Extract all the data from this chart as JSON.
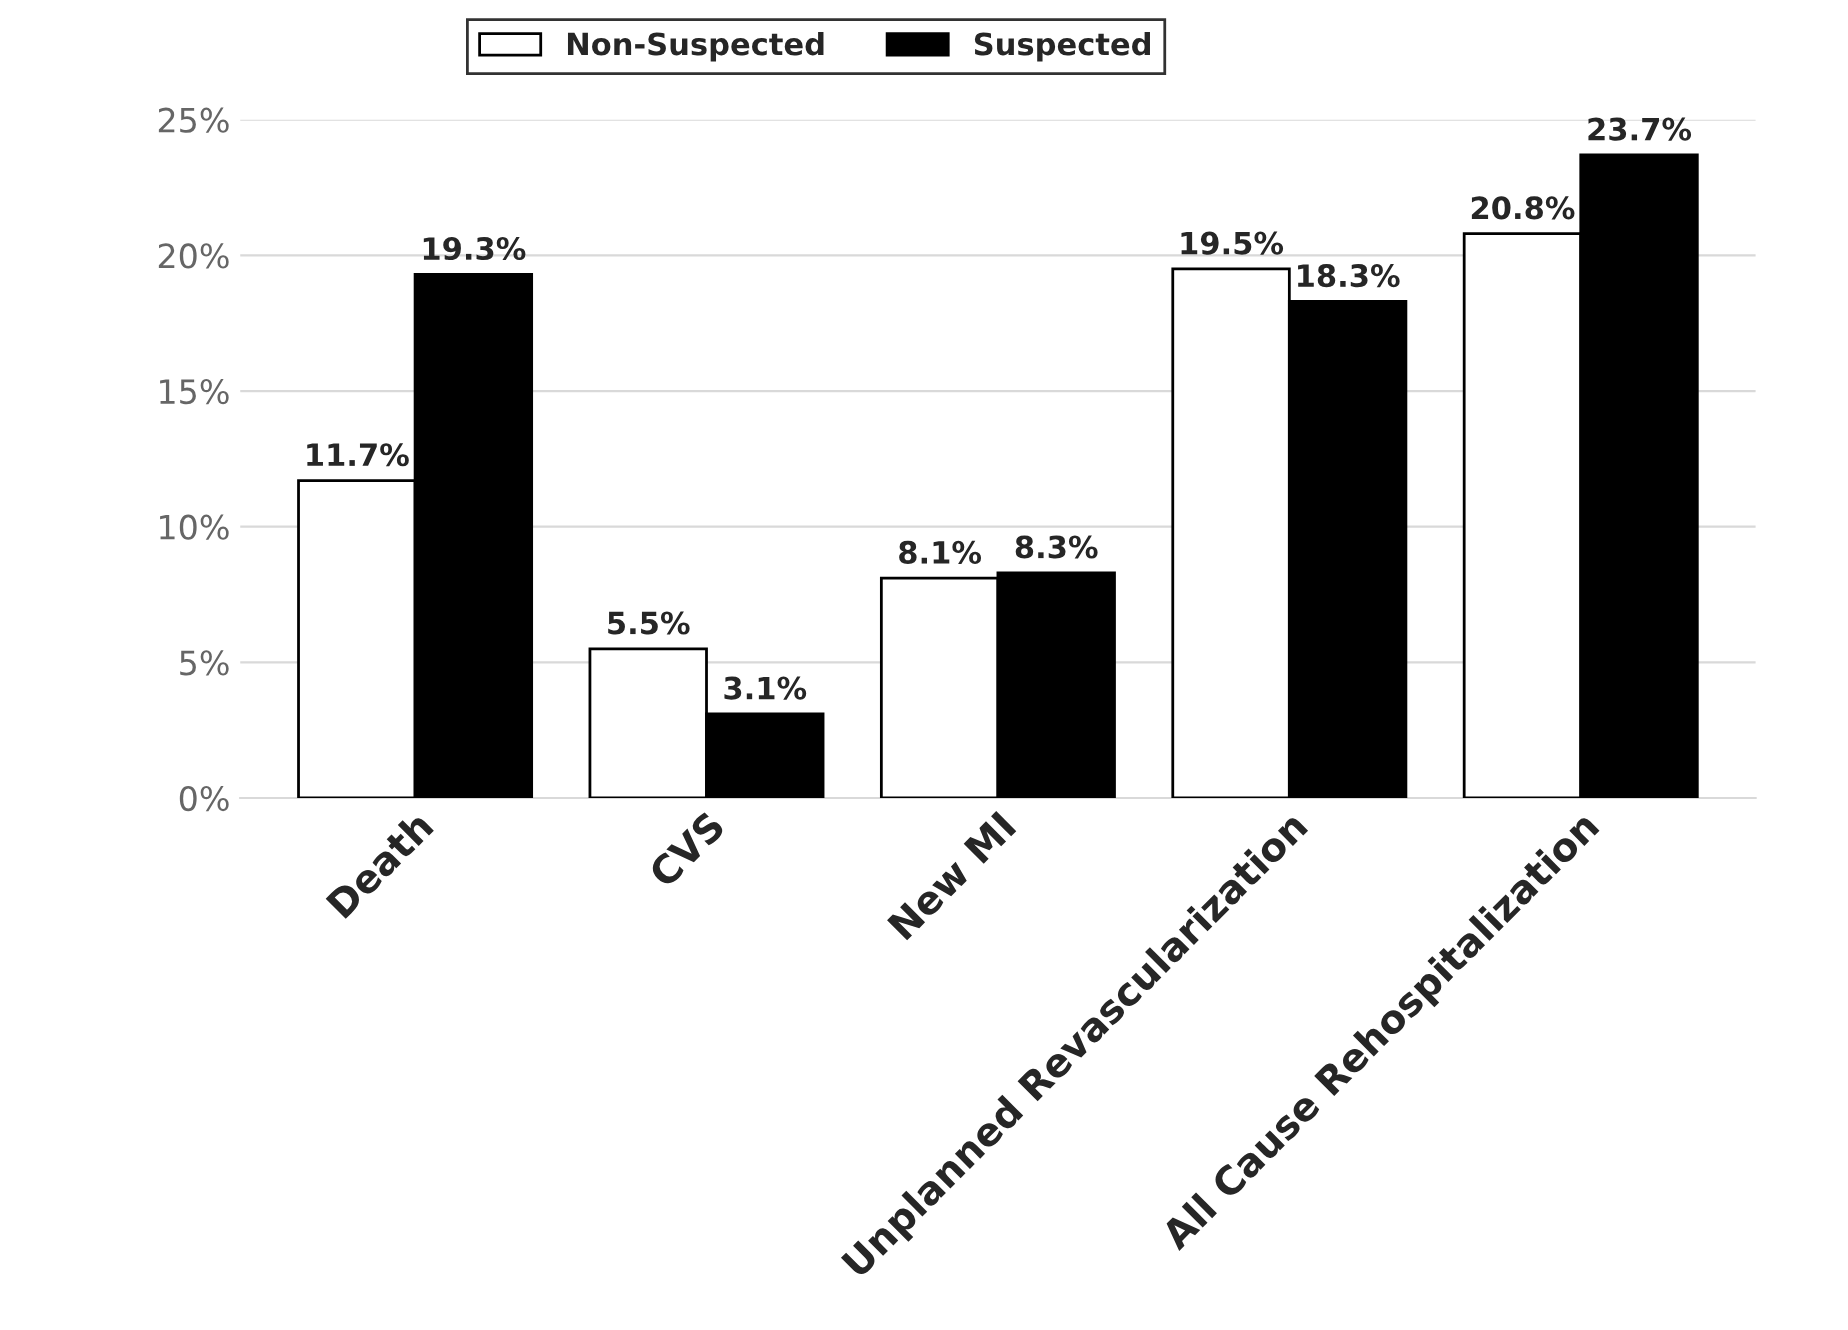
{
  "chart_data": {
    "type": "bar",
    "categories": [
      "Death",
      "CVS",
      "New MI",
      "Unplanned Revascularization",
      "All Cause Rehospitalization"
    ],
    "series": [
      {
        "name": "Non-Suspected",
        "color": "#ffffff",
        "values": [
          11.7,
          5.5,
          8.1,
          19.5,
          20.8
        ],
        "value_labels": [
          "11.7%",
          "5.5%",
          "8.1%",
          "19.5%",
          "20.8%"
        ]
      },
      {
        "name": "Suspected",
        "color": "#000000",
        "values": [
          19.3,
          3.1,
          8.3,
          18.3,
          23.7
        ],
        "value_labels": [
          "19.3%",
          "3.1%",
          "8.3%",
          "18.3%",
          "23.7%"
        ]
      }
    ],
    "ylim": [
      0,
      25
    ],
    "yticks": [
      {
        "value": 0,
        "label": "0%"
      },
      {
        "value": 5,
        "label": "5%"
      },
      {
        "value": 10,
        "label": "10%"
      },
      {
        "value": 15,
        "label": "15%"
      },
      {
        "value": 20,
        "label": "20%"
      },
      {
        "value": 25,
        "label": "25%"
      }
    ],
    "grid": "y",
    "legend": "top"
  }
}
